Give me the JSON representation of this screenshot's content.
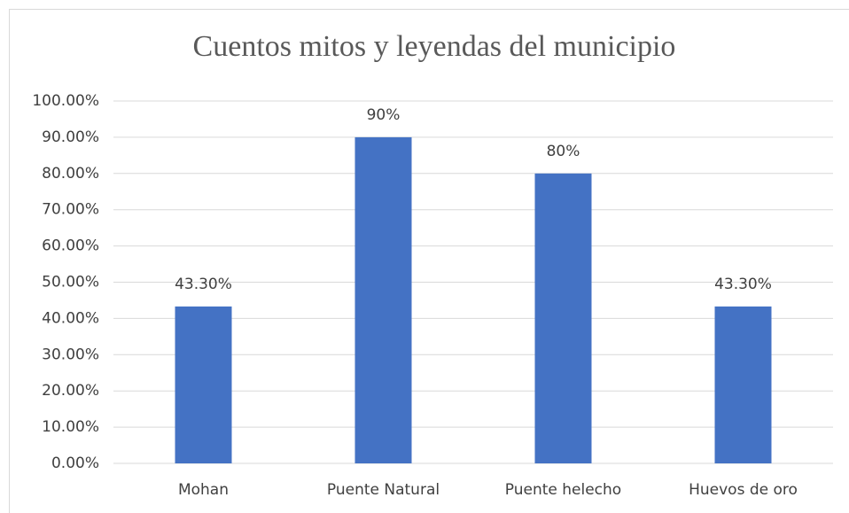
{
  "chart_data": {
    "type": "bar",
    "title": "Cuentos mitos y leyendas del municipio",
    "categories": [
      "Mohan",
      "Puente Natural",
      "Puente helecho",
      "Huevos de oro"
    ],
    "values": [
      43.3,
      90,
      80,
      43.3
    ],
    "value_labels": [
      "43.30%",
      "90%",
      "80%",
      "43.30%"
    ],
    "color": "#4472c4",
    "ylim": [
      0,
      100
    ],
    "yticks": [
      {
        "value": 0,
        "label": "0.00%"
      },
      {
        "value": 10,
        "label": "10.00%"
      },
      {
        "value": 20,
        "label": "20.00%"
      },
      {
        "value": 30,
        "label": "30.00%"
      },
      {
        "value": 40,
        "label": "40.00%"
      },
      {
        "value": 50,
        "label": "50.00%"
      },
      {
        "value": 60,
        "label": "60.00%"
      },
      {
        "value": 70,
        "label": "70.00%"
      },
      {
        "value": 80,
        "label": "80.00%"
      },
      {
        "value": 90,
        "label": "90.00%"
      },
      {
        "value": 100,
        "label": "100.00%"
      }
    ],
    "grid": true
  }
}
